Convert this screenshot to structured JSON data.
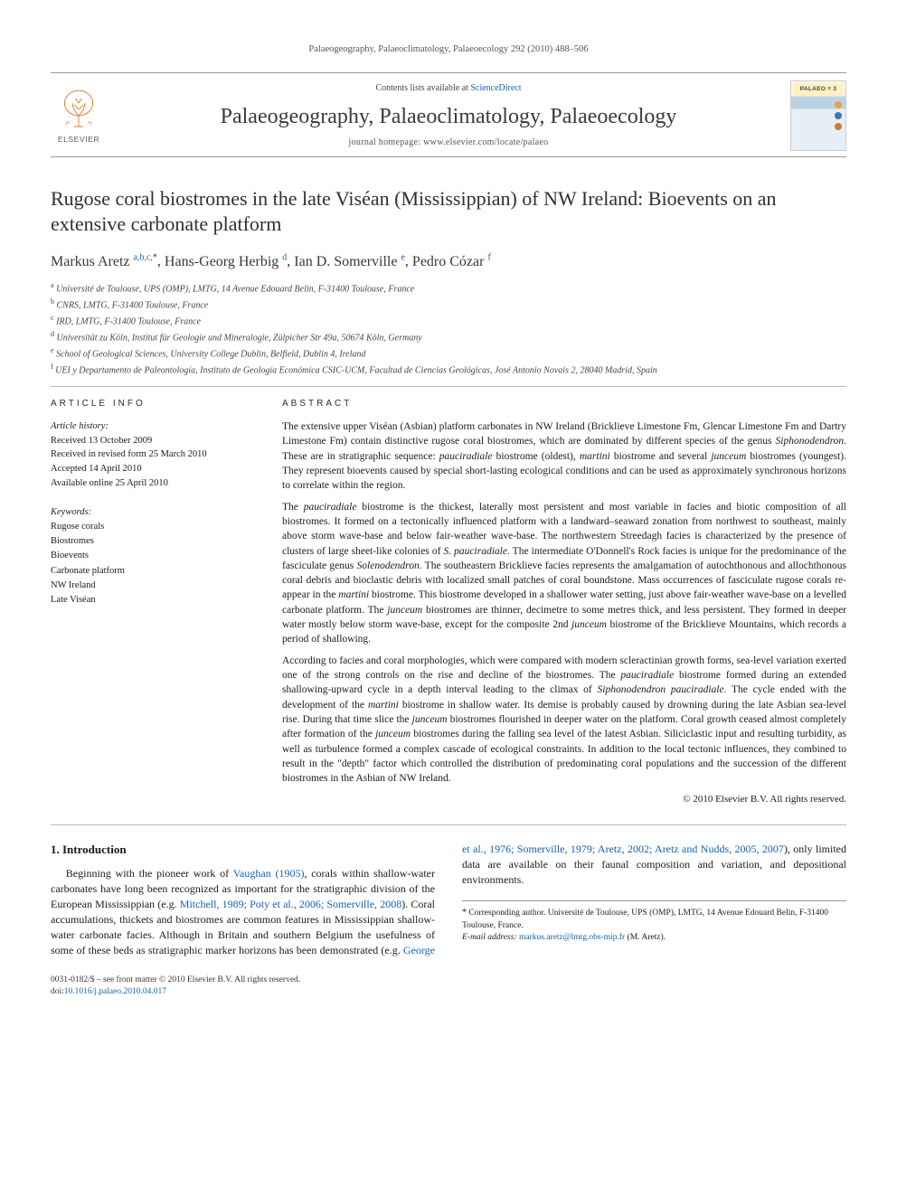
{
  "running_head": "Palaeogeography, Palaeoclimatology, Palaeoecology 292 (2010) 488–506",
  "masthead": {
    "contents_prefix": "Contents lists available at ",
    "contents_link": "ScienceDirect",
    "journal_title": "Palaeogeography, Palaeoclimatology, Palaeoecology",
    "homepage_prefix": "journal homepage: ",
    "homepage_url": "www.elsevier.com/locate/palaeo",
    "publisher_word": "ELSEVIER",
    "cover_label": "PALAEO ≡ 3",
    "dot_colors": [
      "#e9a23a",
      "#3a78b5",
      "#d17a2f"
    ]
  },
  "title": "Rugose coral biostromes in the late Viséan (Mississippian) of NW Ireland: Bioevents on an extensive carbonate platform",
  "authors": [
    {
      "name": "Markus Aretz",
      "aff": "a,b,c,",
      "corr": true
    },
    {
      "name": "Hans-Georg Herbig",
      "aff": "d"
    },
    {
      "name": "Ian D. Somerville",
      "aff": "e"
    },
    {
      "name": "Pedro Cózar",
      "aff": "f"
    }
  ],
  "affiliations": [
    {
      "key": "a",
      "text": "Université de Toulouse, UPS (OMP), LMTG, 14 Avenue Edouard Belin, F-31400 Toulouse, France"
    },
    {
      "key": "b",
      "text": "CNRS, LMTG, F-31400 Toulouse, France"
    },
    {
      "key": "c",
      "text": "IRD, LMTG, F-31400 Toulouse, France"
    },
    {
      "key": "d",
      "text": "Universität zu Köln, Institut für Geologie und Mineralogie, Zülpicher Str 49a, 50674 Köln, Germany"
    },
    {
      "key": "e",
      "text": "School of Geological Sciences, University College Dublin, Belfield, Dublin 4, Ireland"
    },
    {
      "key": "f",
      "text": "UEI y Departamento de Paleontología, Instituto de Geología Económica CSIC-UCM, Facultad de Ciencias Geológicas, José Antonio Novais 2, 28040 Madrid, Spain"
    }
  ],
  "article_info": {
    "label": "ARTICLE INFO",
    "history_head": "Article history:",
    "history": [
      "Received 13 October 2009",
      "Received in revised form 25 March 2010",
      "Accepted 14 April 2010",
      "Available online 25 April 2010"
    ],
    "keywords_head": "Keywords:",
    "keywords": [
      "Rugose corals",
      "Biostromes",
      "Bioevents",
      "Carbonate platform",
      "NW Ireland",
      "Late Viséan"
    ]
  },
  "abstract": {
    "label": "ABSTRACT",
    "p1a": "The extensive upper Viséan (Asbian) platform carbonates in NW Ireland (Bricklieve Limestone Fm, Glencar Limestone Fm and Dartry Limestone Fm) contain distinctive rugose coral biostromes, which are dominated by different species of the genus ",
    "p1_ital1": "Siphonodendron",
    "p1b": ". These are in stratigraphic sequence: ",
    "p1_ital2": "pauciradiale",
    "p1c": " biostrome (oldest), ",
    "p1_ital3": "martini",
    "p1d": " biostrome and several ",
    "p1_ital4": "junceum",
    "p1e": " biostromes (youngest). They represent bioevents caused by special short-lasting ecological conditions and can be used as approximately synchronous horizons to correlate within the region.",
    "p2a": "The ",
    "p2_ital1": "pauciradiale",
    "p2b": " biostrome is the thickest, laterally most persistent and most variable in facies and biotic composition of all biostromes. It formed on a tectonically influenced platform with a landward–seaward zonation from northwest to southeast, mainly above storm wave-base and below fair-weather wave-base. The northwestern Streedagh facies is characterized by the presence of clusters of large sheet-like colonies of ",
    "p2_ital2": "S. pauciradiale",
    "p2c": ". The intermediate O'Donnell's Rock facies is unique for the predominance of the fasciculate genus ",
    "p2_ital3": "Solenodendron",
    "p2d": ". The southeastern Bricklieve facies represents the amalgamation of autochthonous and allochthonous coral debris and bioclastic debris with localized small patches of coral boundstone. Mass occurrences of fasciculate rugose corals re-appear in the ",
    "p2_ital4": "martini",
    "p2e": " biostrome. This biostrome developed in a shallower water setting, just above fair-weather wave-base on a levelled carbonate platform. The ",
    "p2_ital5": "junceum",
    "p2f": " biostromes are thinner, decimetre to some metres thick, and less persistent. They formed in deeper water mostly below storm wave-base, except for the composite 2nd ",
    "p2_ital6": "junceum",
    "p2g": " biostrome of the Bricklieve Mountains, which records a period of shallowing.",
    "p3a": "According to facies and coral morphologies, which were compared with modern scleractinian growth forms, sea-level variation exerted one of the strong controls on the rise and decline of the biostromes. The ",
    "p3_ital1": "pauciradiale",
    "p3b": " biostrome formed during an extended shallowing-upward cycle in a depth interval leading to the climax of ",
    "p3_ital2": "Siphonodendron pauciradiale",
    "p3c": ". The cycle ended with the development of the ",
    "p3_ital3": "martini",
    "p3d": " biostrome in shallow water. Its demise is probably caused by drowning during the late Asbian sea-level rise. During that time slice the ",
    "p3_ital4": "junceum",
    "p3e": " biostromes flourished in deeper water on the platform. Coral growth ceased almost completely after formation of the ",
    "p3_ital5": "junceum",
    "p3f": " biostromes during the falling sea level of the latest Asbian. Siliciclastic input and resulting turbidity, as well as turbulence formed a complex cascade of ecological constraints. In addition to the local tectonic influences, they combined to result in the \"depth\" factor which controlled the distribution of predominating coral populations and the succession of the different biostromes in the Asbian of NW Ireland.",
    "copyright": "© 2010 Elsevier B.V. All rights reserved."
  },
  "body": {
    "h_intro": "1. Introduction",
    "intro_a": "Beginning with the pioneer work of ",
    "intro_link1": "Vaughan (1905)",
    "intro_b": ", corals within shallow-water carbonates have long been recognized as important for ",
    "intro_c": "the stratigraphic division of the European Mississippian (e.g. ",
    "intro_link2": "Mitchell, 1989; Poty et al., 2006; Somerville, 2008",
    "intro_d": "). Coral accumulations, thickets and biostromes are common features in Mississippian shallow-water carbonate facies. Although in Britain and southern Belgium the usefulness of some of these beds as stratigraphic marker horizons has been demonstrated (e.g. ",
    "intro_link3": "George et al., 1976; Somerville, 1979; Aretz, 2002; Aretz and Nudds, 2005, 2007",
    "intro_e": "), only limited data are available on their faunal composition and variation, and depositional environments."
  },
  "footnote": {
    "corr_text": "Corresponding author. Université de Toulouse, UPS (OMP), LMTG, 14 Avenue Edouard Belin, F-31400 Toulouse, France.",
    "email_label": "E-mail address: ",
    "email": "markus.aretz@lmtg.obs-mip.fr",
    "email_paren": " (M. Aretz)."
  },
  "footer": {
    "issn_line": "0031-0182/$ – see front matter © 2010 Elsevier B.V. All rights reserved.",
    "doi_label": "doi:",
    "doi": "10.1016/j.palaeo.2010.04.017"
  },
  "colors": {
    "link": "#1560b3",
    "elsevier_orange": "#e9711c",
    "rule_gray": "#bdbdbd"
  }
}
